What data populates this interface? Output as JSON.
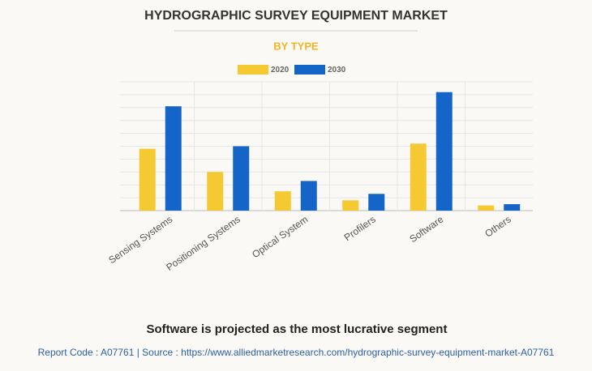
{
  "chart_data": {
    "type": "bar",
    "title": "HYDROGRAPHIC SURVEY EQUIPMENT MARKET",
    "subtitle": "BY TYPE",
    "categories": [
      "Sensing Systems",
      "Positioning Systems",
      "Optical System",
      "Profilers",
      "Software",
      "Others"
    ],
    "series": [
      {
        "name": "2020",
        "color": "#f5c932",
        "values": [
          4.8,
          3.0,
          1.5,
          0.8,
          5.2,
          0.4
        ]
      },
      {
        "name": "2030",
        "color": "#1565c8",
        "values": [
          8.1,
          5.0,
          2.3,
          1.3,
          9.2,
          0.5
        ]
      }
    ],
    "ylim": [
      0,
      10
    ],
    "grid": true,
    "caption": "Software is projected as the most lucrative segment",
    "footer": "Report Code : A07761  |  Source : https://www.alliedmarketresearch.com/hydrographic-survey-equipment-market-A07761"
  }
}
